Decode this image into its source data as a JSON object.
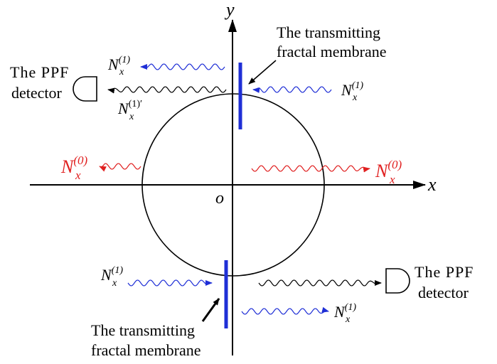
{
  "colors": {
    "axis": "#000000",
    "membrane": "#1f2fd6",
    "order1_wave": "#1f2fd6",
    "order0_wave": "#e02020",
    "reflected_wave": "#000000"
  },
  "axes": {
    "x_label": "x",
    "y_label": "y",
    "origin_label": "o"
  },
  "labels": {
    "membrane_top": [
      "The transmitting",
      "fractal membrane"
    ],
    "membrane_bottom": [
      "The transmitting",
      "fractal membrane"
    ],
    "detector_left": [
      "The PPF",
      "detector"
    ],
    "detector_right": [
      "The PPF",
      "detector"
    ]
  },
  "waves": {
    "symbol": "N",
    "subscript": "x",
    "order1_superscript": "(1)",
    "order0_superscript": "(0)",
    "reflected_superscript": "(1)′"
  },
  "icons": {
    "detector": "detector-icon",
    "membrane": "membrane-bar",
    "arrow": "arrow-head"
  }
}
